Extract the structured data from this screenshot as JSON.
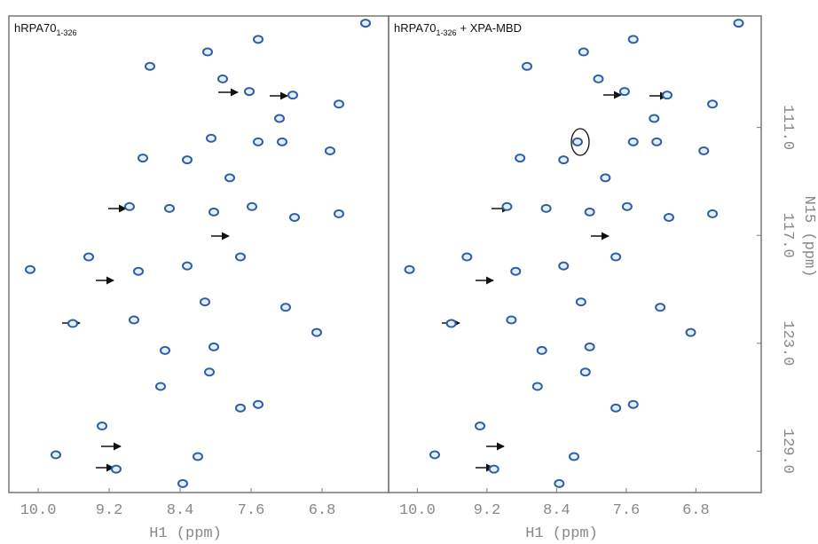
{
  "chart_data": [
    {
      "type": "scatter",
      "title": "hRPA70",
      "title_subscript": "1-326",
      "x_label": "H1 (ppm)",
      "color": "#2b5fa8",
      "xlim": [
        10.33,
        6.05
      ],
      "ylim": [
        104.8,
        131.3
      ],
      "xticks": [
        {
          "value": 10.0,
          "label": "10.0"
        },
        9.2,
        8.4,
        7.6,
        6.8
      ],
      "x": [
        6.31,
        7.52,
        8.09,
        8.74,
        7.92,
        7.62,
        7.13,
        6.61,
        7.28,
        8.05,
        7.52,
        8.82,
        8.32,
        6.71,
        7.25,
        7.84,
        8.97,
        8.52,
        8.02,
        7.59,
        7.11,
        6.61,
        10.09,
        9.43,
        8.87,
        8.32,
        7.72,
        9.61,
        8.92,
        8.12,
        7.21,
        8.02,
        8.57,
        9.28,
        7.52,
        7.72,
        9.8,
        9.12,
        8.2,
        8.37,
        8.62,
        8.07,
        6.86
      ],
      "y": [
        105.2,
        106.1,
        106.8,
        107.6,
        108.3,
        109.0,
        109.2,
        109.7,
        110.5,
        111.6,
        111.8,
        112.7,
        112.8,
        112.3,
        111.8,
        113.8,
        115.4,
        115.5,
        115.7,
        115.4,
        116.0,
        115.8,
        118.9,
        118.2,
        119.0,
        118.7,
        118.2,
        121.9,
        121.7,
        120.7,
        121.0,
        123.2,
        123.4,
        127.6,
        126.4,
        126.6,
        129.2,
        130.0,
        129.3,
        130.8,
        125.4,
        124.6,
        122.4
      ]
    },
    {
      "type": "scatter",
      "title": "hRPA70",
      "title_subscript": "1-326",
      "title_suffix": "+ XPA-MBD",
      "x_label": "H1 (ppm)",
      "y_label": "N15 (ppm)",
      "color": "#2b5fa8",
      "xlim": [
        10.33,
        6.05
      ],
      "ylim": [
        104.8,
        131.3
      ],
      "xticks": [
        {
          "value": 10.0,
          "label": "10.0"
        },
        9.2,
        8.4,
        7.6,
        6.8
      ],
      "yticks": [
        {
          "value": 111.0,
          "label": "111.0"
        },
        {
          "value": 117.0,
          "label": "117.0"
        },
        {
          "value": 123.0,
          "label": "123.0"
        },
        {
          "value": 129.0,
          "label": "129.0"
        }
      ],
      "x": [
        6.31,
        7.52,
        8.09,
        8.74,
        7.92,
        7.62,
        7.13,
        6.61,
        7.28,
        8.16,
        7.52,
        8.82,
        8.32,
        6.71,
        7.25,
        7.84,
        8.97,
        8.52,
        8.02,
        7.59,
        7.11,
        6.61,
        10.09,
        9.43,
        8.87,
        8.32,
        7.72,
        9.61,
        8.92,
        8.12,
        7.21,
        8.02,
        8.57,
        9.28,
        7.52,
        7.72,
        9.8,
        9.12,
        8.2,
        8.37,
        8.62,
        8.07,
        6.86
      ],
      "y": [
        105.2,
        106.1,
        106.8,
        107.6,
        108.3,
        109.0,
        109.2,
        109.7,
        110.5,
        111.8,
        111.8,
        112.7,
        112.8,
        112.3,
        111.8,
        113.8,
        115.4,
        115.5,
        115.7,
        115.4,
        116.0,
        115.8,
        118.9,
        118.2,
        119.0,
        118.7,
        118.2,
        121.9,
        121.7,
        120.7,
        121.0,
        123.2,
        123.4,
        127.6,
        126.4,
        126.6,
        129.2,
        130.0,
        129.3,
        130.8,
        125.4,
        124.6,
        122.4
      ]
    }
  ]
}
